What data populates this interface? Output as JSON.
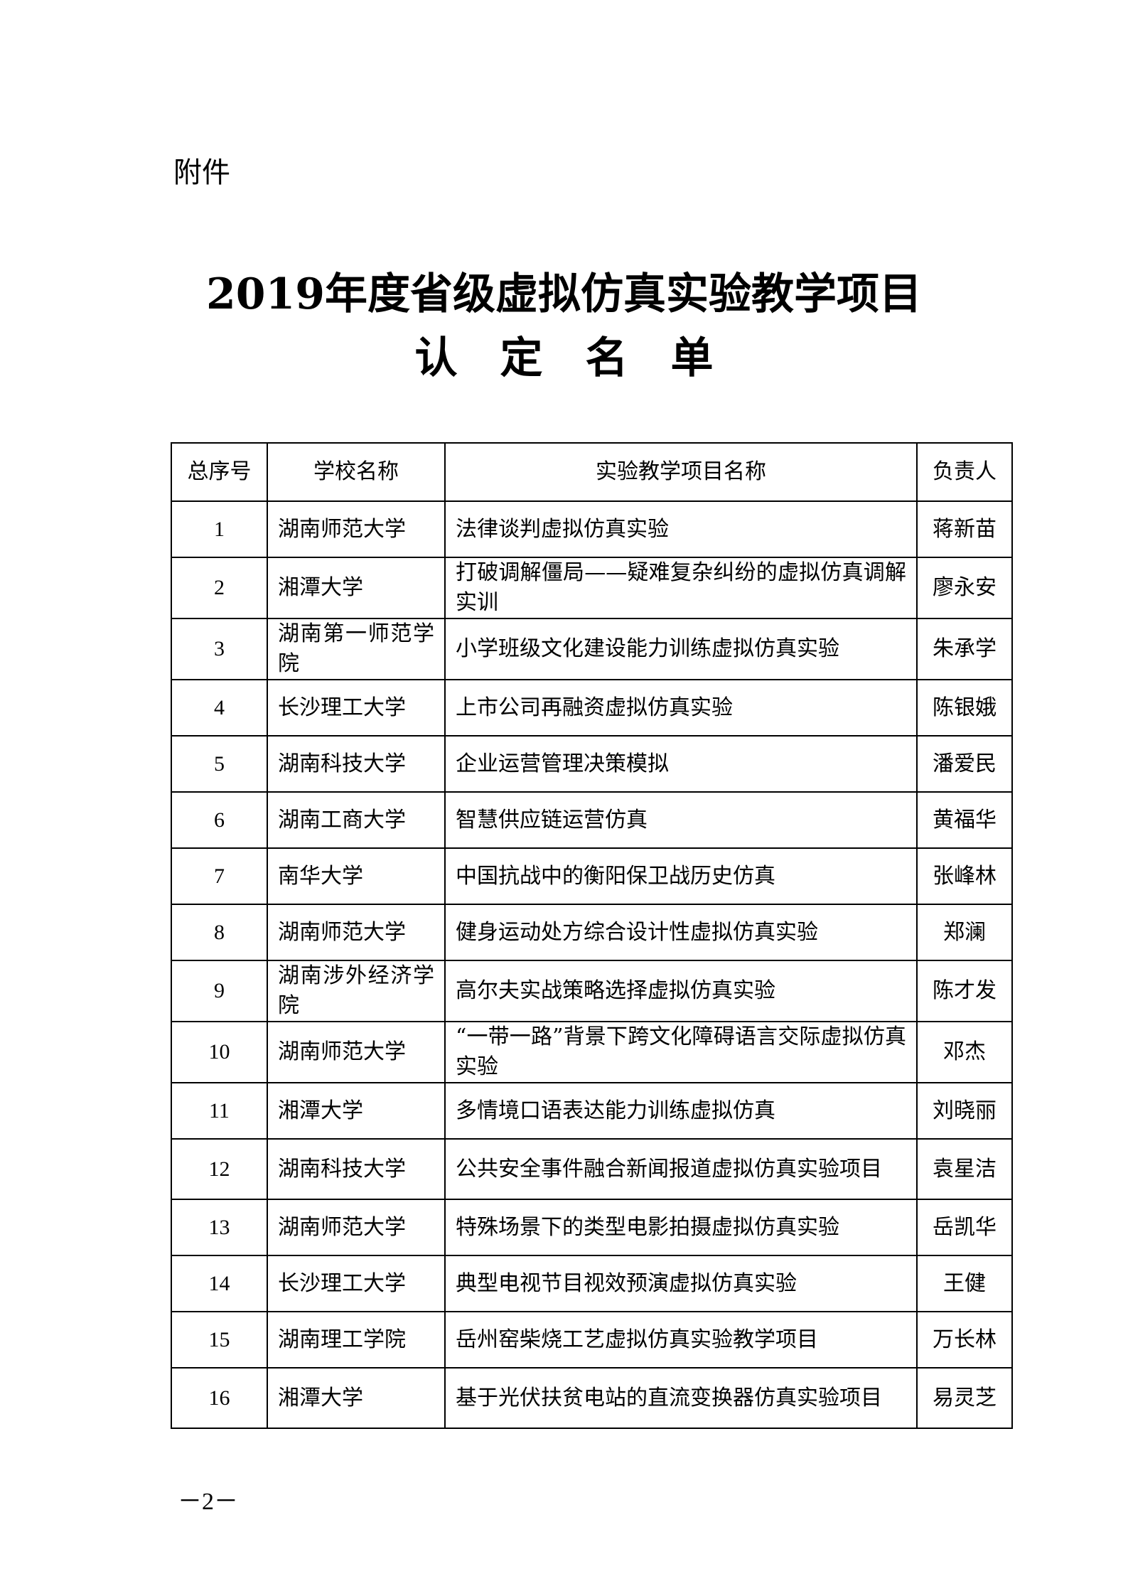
{
  "attachment_label": "附件",
  "title_line1": "2019年度省级虚拟仿真实验教学项目",
  "title_line2": "认定名单",
  "table": {
    "headers": [
      "总序号",
      "学校名称",
      "实验教学项目名称",
      "负责人"
    ],
    "rows": [
      {
        "no": "1",
        "school": "湖南师范大学",
        "project": "法律谈判虚拟仿真实验",
        "person": "蒋新苗"
      },
      {
        "no": "2",
        "school": "湘潭大学",
        "project": "打破调解僵局——疑难复杂纠纷的虚拟仿真调解实训",
        "person": "廖永安"
      },
      {
        "no": "3",
        "school": "湖南第一师范学院",
        "project": "小学班级文化建设能力训练虚拟仿真实验",
        "person": "朱承学"
      },
      {
        "no": "4",
        "school": "长沙理工大学",
        "project": "上市公司再融资虚拟仿真实验",
        "person": "陈银娥"
      },
      {
        "no": "5",
        "school": "湖南科技大学",
        "project": "企业运营管理决策模拟",
        "person": "潘爱民"
      },
      {
        "no": "6",
        "school": "湖南工商大学",
        "project": "智慧供应链运营仿真",
        "person": "黄福华"
      },
      {
        "no": "7",
        "school": "南华大学",
        "project": "中国抗战中的衡阳保卫战历史仿真",
        "person": "张峰林"
      },
      {
        "no": "8",
        "school": "湖南师范大学",
        "project": "健身运动处方综合设计性虚拟仿真实验",
        "person": "郑澜"
      },
      {
        "no": "9",
        "school": "湖南涉外经济学院",
        "project": "高尔夫实战策略选择虚拟仿真实验",
        "person": "陈才发"
      },
      {
        "no": "10",
        "school": "湖南师范大学",
        "project": "“一带一路”背景下跨文化障碍语言交际虚拟仿真实验",
        "person": "邓杰"
      },
      {
        "no": "11",
        "school": "湘潭大学",
        "project": "多情境口语表达能力训练虚拟仿真",
        "person": "刘晓丽"
      },
      {
        "no": "12",
        "school": "湖南科技大学",
        "project": "公共安全事件融合新闻报道虚拟仿真实验项目",
        "person": "袁星洁"
      },
      {
        "no": "13",
        "school": "湖南师范大学",
        "project": "特殊场景下的类型电影拍摄虚拟仿真实验",
        "person": "岳凯华"
      },
      {
        "no": "14",
        "school": "长沙理工大学",
        "project": "典型电视节目视效预演虚拟仿真实验",
        "person": "王健"
      },
      {
        "no": "15",
        "school": "湖南理工学院",
        "project": "岳州窑柴烧工艺虚拟仿真实验教学项目",
        "person": "万长林"
      },
      {
        "no": "16",
        "school": "湘潭大学",
        "project": "基于光伏扶贫电站的直流变换器仿真实验项目",
        "person": "易灵芝"
      }
    ]
  },
  "page_number": "－2－"
}
